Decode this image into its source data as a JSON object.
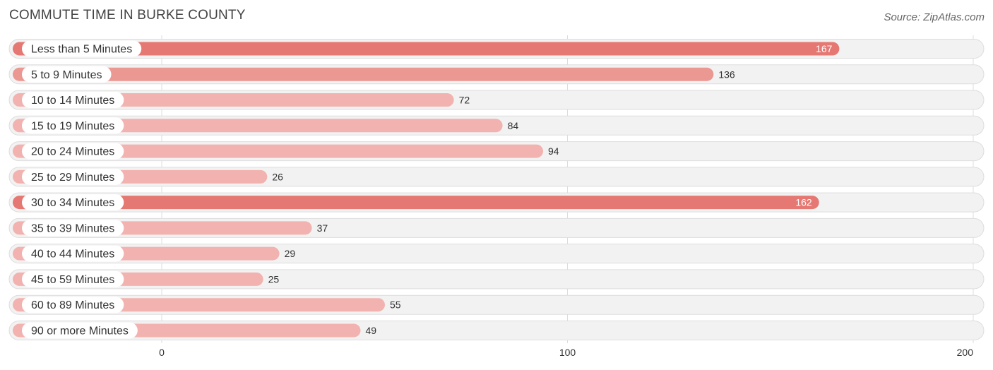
{
  "header": {
    "title": "COMMUTE TIME IN BURKE COUNTY",
    "source": "Source: ZipAtlas.com"
  },
  "chart_data": {
    "type": "bar",
    "orientation": "horizontal",
    "title": "COMMUTE TIME IN BURKE COUNTY",
    "xlabel": "",
    "ylabel": "",
    "xlim": [
      0,
      200
    ],
    "ticks": [
      0,
      100,
      200
    ],
    "categories": [
      "Less than 5 Minutes",
      "5 to 9 Minutes",
      "10 to 14 Minutes",
      "15 to 19 Minutes",
      "20 to 24 Minutes",
      "25 to 29 Minutes",
      "30 to 34 Minutes",
      "35 to 39 Minutes",
      "40 to 44 Minutes",
      "45 to 59 Minutes",
      "60 to 89 Minutes",
      "90 or more Minutes"
    ],
    "values": [
      167,
      136,
      72,
      84,
      94,
      26,
      162,
      37,
      29,
      25,
      55,
      49
    ],
    "colors": {
      "high": "#e57872",
      "mid": "#eb9893",
      "low": "#f2b3b0",
      "track": "#f2f2f2"
    }
  }
}
